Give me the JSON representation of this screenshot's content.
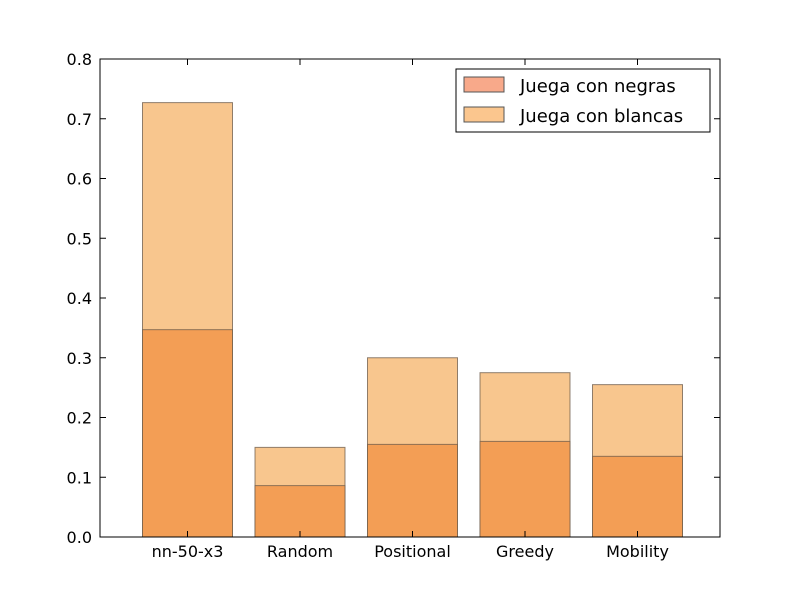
{
  "chart_data": {
    "type": "bar",
    "categories": [
      "nn-50-x3",
      "Random",
      "Positional",
      "Greedy",
      "Mobility"
    ],
    "series": [
      {
        "name": "Juega con negras",
        "values": [
          0.347,
          0.086,
          0.155,
          0.16,
          0.135
        ],
        "color": "#f4a460"
      },
      {
        "name": "Juega con blancas",
        "values": [
          0.727,
          0.15,
          0.3,
          0.275,
          0.255
        ],
        "color": "#f7c08a"
      }
    ],
    "legend_swatches": [
      "#f8a98a",
      "#fbc68e"
    ],
    "ylim": [
      0,
      0.8
    ],
    "yticks": [
      "0.0",
      "0.1",
      "0.2",
      "0.3",
      "0.4",
      "0.5",
      "0.6",
      "0.7",
      "0.8"
    ],
    "xlabel": "",
    "ylabel": "",
    "title": "",
    "legend_position": "top-right",
    "grid": false
  }
}
